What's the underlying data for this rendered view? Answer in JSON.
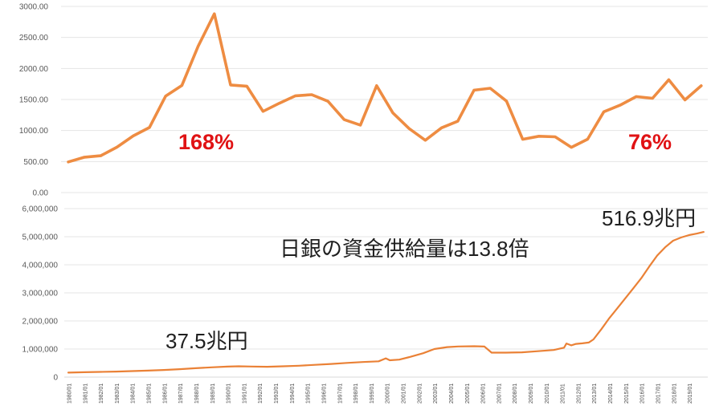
{
  "colors": {
    "line_orange_top": "#EE8C42",
    "line_orange_bottom": "#EA8136",
    "annotation_red": "#E01214",
    "annotation_black": "#1F1F1F",
    "axis_label_gray": "#595959",
    "xtick_gray": "#4D4D4D",
    "gridline": "#E4E4E4",
    "axis_line": "#D9D9D9"
  },
  "chart_data": [
    {
      "type": "line",
      "title": "",
      "xlabel": "",
      "ylabel": "",
      "ylim": [
        0,
        3000
      ],
      "grid": true,
      "legend": "none",
      "categories": [
        1980,
        1981,
        1982,
        1983,
        1984,
        1985,
        1986,
        1987,
        1988,
        1989,
        1990,
        1991,
        1992,
        1993,
        1994,
        1995,
        1996,
        1997,
        1998,
        1999,
        2000,
        2001,
        2002,
        2003,
        2004,
        2005,
        2006,
        2007,
        2008,
        2009,
        2010,
        2011,
        2012,
        2013,
        2014,
        2015,
        2016,
        2017,
        2018,
        2019
      ],
      "values": [
        494,
        570,
        594,
        732,
        913,
        1049,
        1556,
        1726,
        2357,
        2881,
        1734,
        1715,
        1308,
        1439,
        1559,
        1578,
        1471,
        1175,
        1087,
        1722,
        1284,
        1032,
        843,
        1044,
        1150,
        1650,
        1681,
        1476,
        859,
        908,
        899,
        729,
        860,
        1302,
        1408,
        1547,
        1519,
        1818,
        1494,
        1721
      ],
      "ytick_labels": [
        "3000.00",
        "2500.00",
        "2000.00",
        "1500.00",
        "1000.00",
        "500.00",
        "0.00"
      ],
      "annotations": [
        {
          "text": "168%"
        },
        {
          "text": "76%"
        }
      ]
    },
    {
      "type": "line",
      "title": "",
      "xlabel": "",
      "ylabel": "",
      "ylim": [
        0,
        6000000
      ],
      "grid": true,
      "legend": "none",
      "points": [
        [
          1980.0,
          160000
        ],
        [
          1981.0,
          174000
        ],
        [
          1982.0,
          186000
        ],
        [
          1983.0,
          198000
        ],
        [
          1984.0,
          213000
        ],
        [
          1985.0,
          230000
        ],
        [
          1986.0,
          253000
        ],
        [
          1987.0,
          283000
        ],
        [
          1988.0,
          318000
        ],
        [
          1989.0,
          348000
        ],
        [
          1990.0,
          375000
        ],
        [
          1990.7,
          385000
        ],
        [
          1991.5,
          376000
        ],
        [
          1992.5,
          368000
        ],
        [
          1993.5,
          386000
        ],
        [
          1994.5,
          406000
        ],
        [
          1995.5,
          436000
        ],
        [
          1996.5,
          470000
        ],
        [
          1997.5,
          505000
        ],
        [
          1998.5,
          537000
        ],
        [
          1999.5,
          562000
        ],
        [
          1999.95,
          670000
        ],
        [
          2000.2,
          600000
        ],
        [
          2000.8,
          622000
        ],
        [
          2001.5,
          724000
        ],
        [
          2002.3,
          852000
        ],
        [
          2003.0,
          1000000
        ],
        [
          2003.8,
          1068000
        ],
        [
          2004.5,
          1090000
        ],
        [
          2005.5,
          1100000
        ],
        [
          2006.15,
          1088000
        ],
        [
          2006.6,
          872000
        ],
        [
          2007.5,
          872000
        ],
        [
          2008.5,
          882000
        ],
        [
          2009.5,
          922000
        ],
        [
          2010.5,
          966000
        ],
        [
          2011.15,
          1048000
        ],
        [
          2011.3,
          1198000
        ],
        [
          2011.6,
          1132000
        ],
        [
          2011.9,
          1182000
        ],
        [
          2012.3,
          1204000
        ],
        [
          2012.7,
          1232000
        ],
        [
          2013.0,
          1344000
        ],
        [
          2013.5,
          1710000
        ],
        [
          2014.0,
          2104000
        ],
        [
          2014.5,
          2452000
        ],
        [
          2015.0,
          2806000
        ],
        [
          2015.5,
          3162000
        ],
        [
          2016.0,
          3522000
        ],
        [
          2016.5,
          3936000
        ],
        [
          2017.0,
          4330000
        ],
        [
          2017.5,
          4624000
        ],
        [
          2018.0,
          4858000
        ],
        [
          2018.5,
          4972000
        ],
        [
          2019.0,
          5058000
        ],
        [
          2019.5,
          5112000
        ],
        [
          2019.92,
          5169000
        ]
      ],
      "ytick_labels": [
        "6,000,000",
        "5,000,000",
        "4,000,000",
        "3,000,000",
        "2,000,000",
        "1,000,000",
        "0"
      ],
      "xtick_labels": [
        "1980/01",
        "1981/01",
        "1982/01",
        "1983/01",
        "1984/01",
        "1985/01",
        "1986/01",
        "1987/01",
        "1988/01",
        "1989/01",
        "1990/01",
        "1991/01",
        "1992/01",
        "1993/01",
        "1994/01",
        "1995/01",
        "1996/01",
        "1997/01",
        "1998/01",
        "1999/01",
        "2000/01",
        "2001/01",
        "2002/01",
        "2003/01",
        "2004/01",
        "2005/01",
        "2006/01",
        "2007/01",
        "2008/01",
        "2009/01",
        "2010/01",
        "2011/01",
        "2012/01",
        "2013/01",
        "2014/01",
        "2015/01",
        "2016/01",
        "2017/01",
        "2018/01",
        "2019/01"
      ],
      "annotations": [
        {
          "text": "37.5兆円"
        },
        {
          "text": "日銀の資金供給量は13.8倍"
        },
        {
          "text": "516.9兆円"
        }
      ]
    }
  ]
}
